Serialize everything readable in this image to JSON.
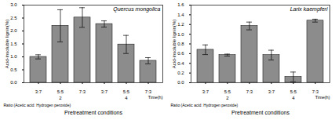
{
  "chart_data": [
    {
      "type": "bar",
      "title": "Quercus mongolica",
      "categories": [
        "3:7",
        "5:5",
        "7:3",
        "3:7",
        "5:5",
        "7:3"
      ],
      "values": [
        1.0,
        2.2,
        2.52,
        2.27,
        1.48,
        0.85
      ],
      "errors": [
        0.08,
        0.62,
        0.38,
        0.12,
        0.35,
        0.12
      ],
      "groups": [
        {
          "label": "2",
          "size": 3
        },
        {
          "label": "4",
          "size": 3
        }
      ],
      "group_title": "Time(h)",
      "category_title": "Ratio (Acetic acid: Hydrogen peroxide)",
      "x_label": "Pretreatment conditions",
      "y_label": "Acid-insoluble lignin(%)",
      "color": "#8c8c8c",
      "ylim": [
        0,
        3.0
      ],
      "yticks": [
        {
          "value": 0,
          "label": "0.0"
        },
        {
          "value": 0.5,
          "label": "0.5"
        },
        {
          "value": 1,
          "label": "1.0"
        },
        {
          "value": 1.5,
          "label": "1.5"
        },
        {
          "value": 2,
          "label": "2.0"
        },
        {
          "value": 2.5,
          "label": "2.5"
        },
        {
          "value": 3,
          "label": "3.0"
        }
      ]
    },
    {
      "type": "bar",
      "title": "Larix kaempferi",
      "categories": [
        "3:7",
        "5:5",
        "7:3",
        "3:7",
        "5:5",
        "7:3"
      ],
      "values": [
        0.68,
        0.57,
        1.17,
        0.57,
        0.12,
        1.28
      ],
      "errors": [
        0.1,
        0.02,
        0.08,
        0.1,
        0.1,
        0.03
      ],
      "groups": [
        {
          "label": "2",
          "size": 3
        },
        {
          "label": "4",
          "size": 3
        }
      ],
      "group_title": "Time(h)",
      "category_title": "Ratio (Acetic acid: Hydrogen peroxide)",
      "x_label": "Pretreatment conditions",
      "y_label": "Acid-insoluble lignin(%)",
      "color": "#8c8c8c",
      "ylim": [
        0,
        1.6
      ],
      "yticks": [
        {
          "value": 0,
          "label": "0.0"
        },
        {
          "value": 0.2,
          "label": "0.2"
        },
        {
          "value": 0.4,
          "label": "0.4"
        },
        {
          "value": 0.6,
          "label": "0.6"
        },
        {
          "value": 0.8,
          "label": "0.8"
        },
        {
          "value": 1,
          "label": "1.0"
        },
        {
          "value": 1.2,
          "label": "1.2"
        },
        {
          "value": 1.4,
          "label": "1.4"
        },
        {
          "value": 1.6,
          "label": "1.6"
        }
      ]
    }
  ]
}
